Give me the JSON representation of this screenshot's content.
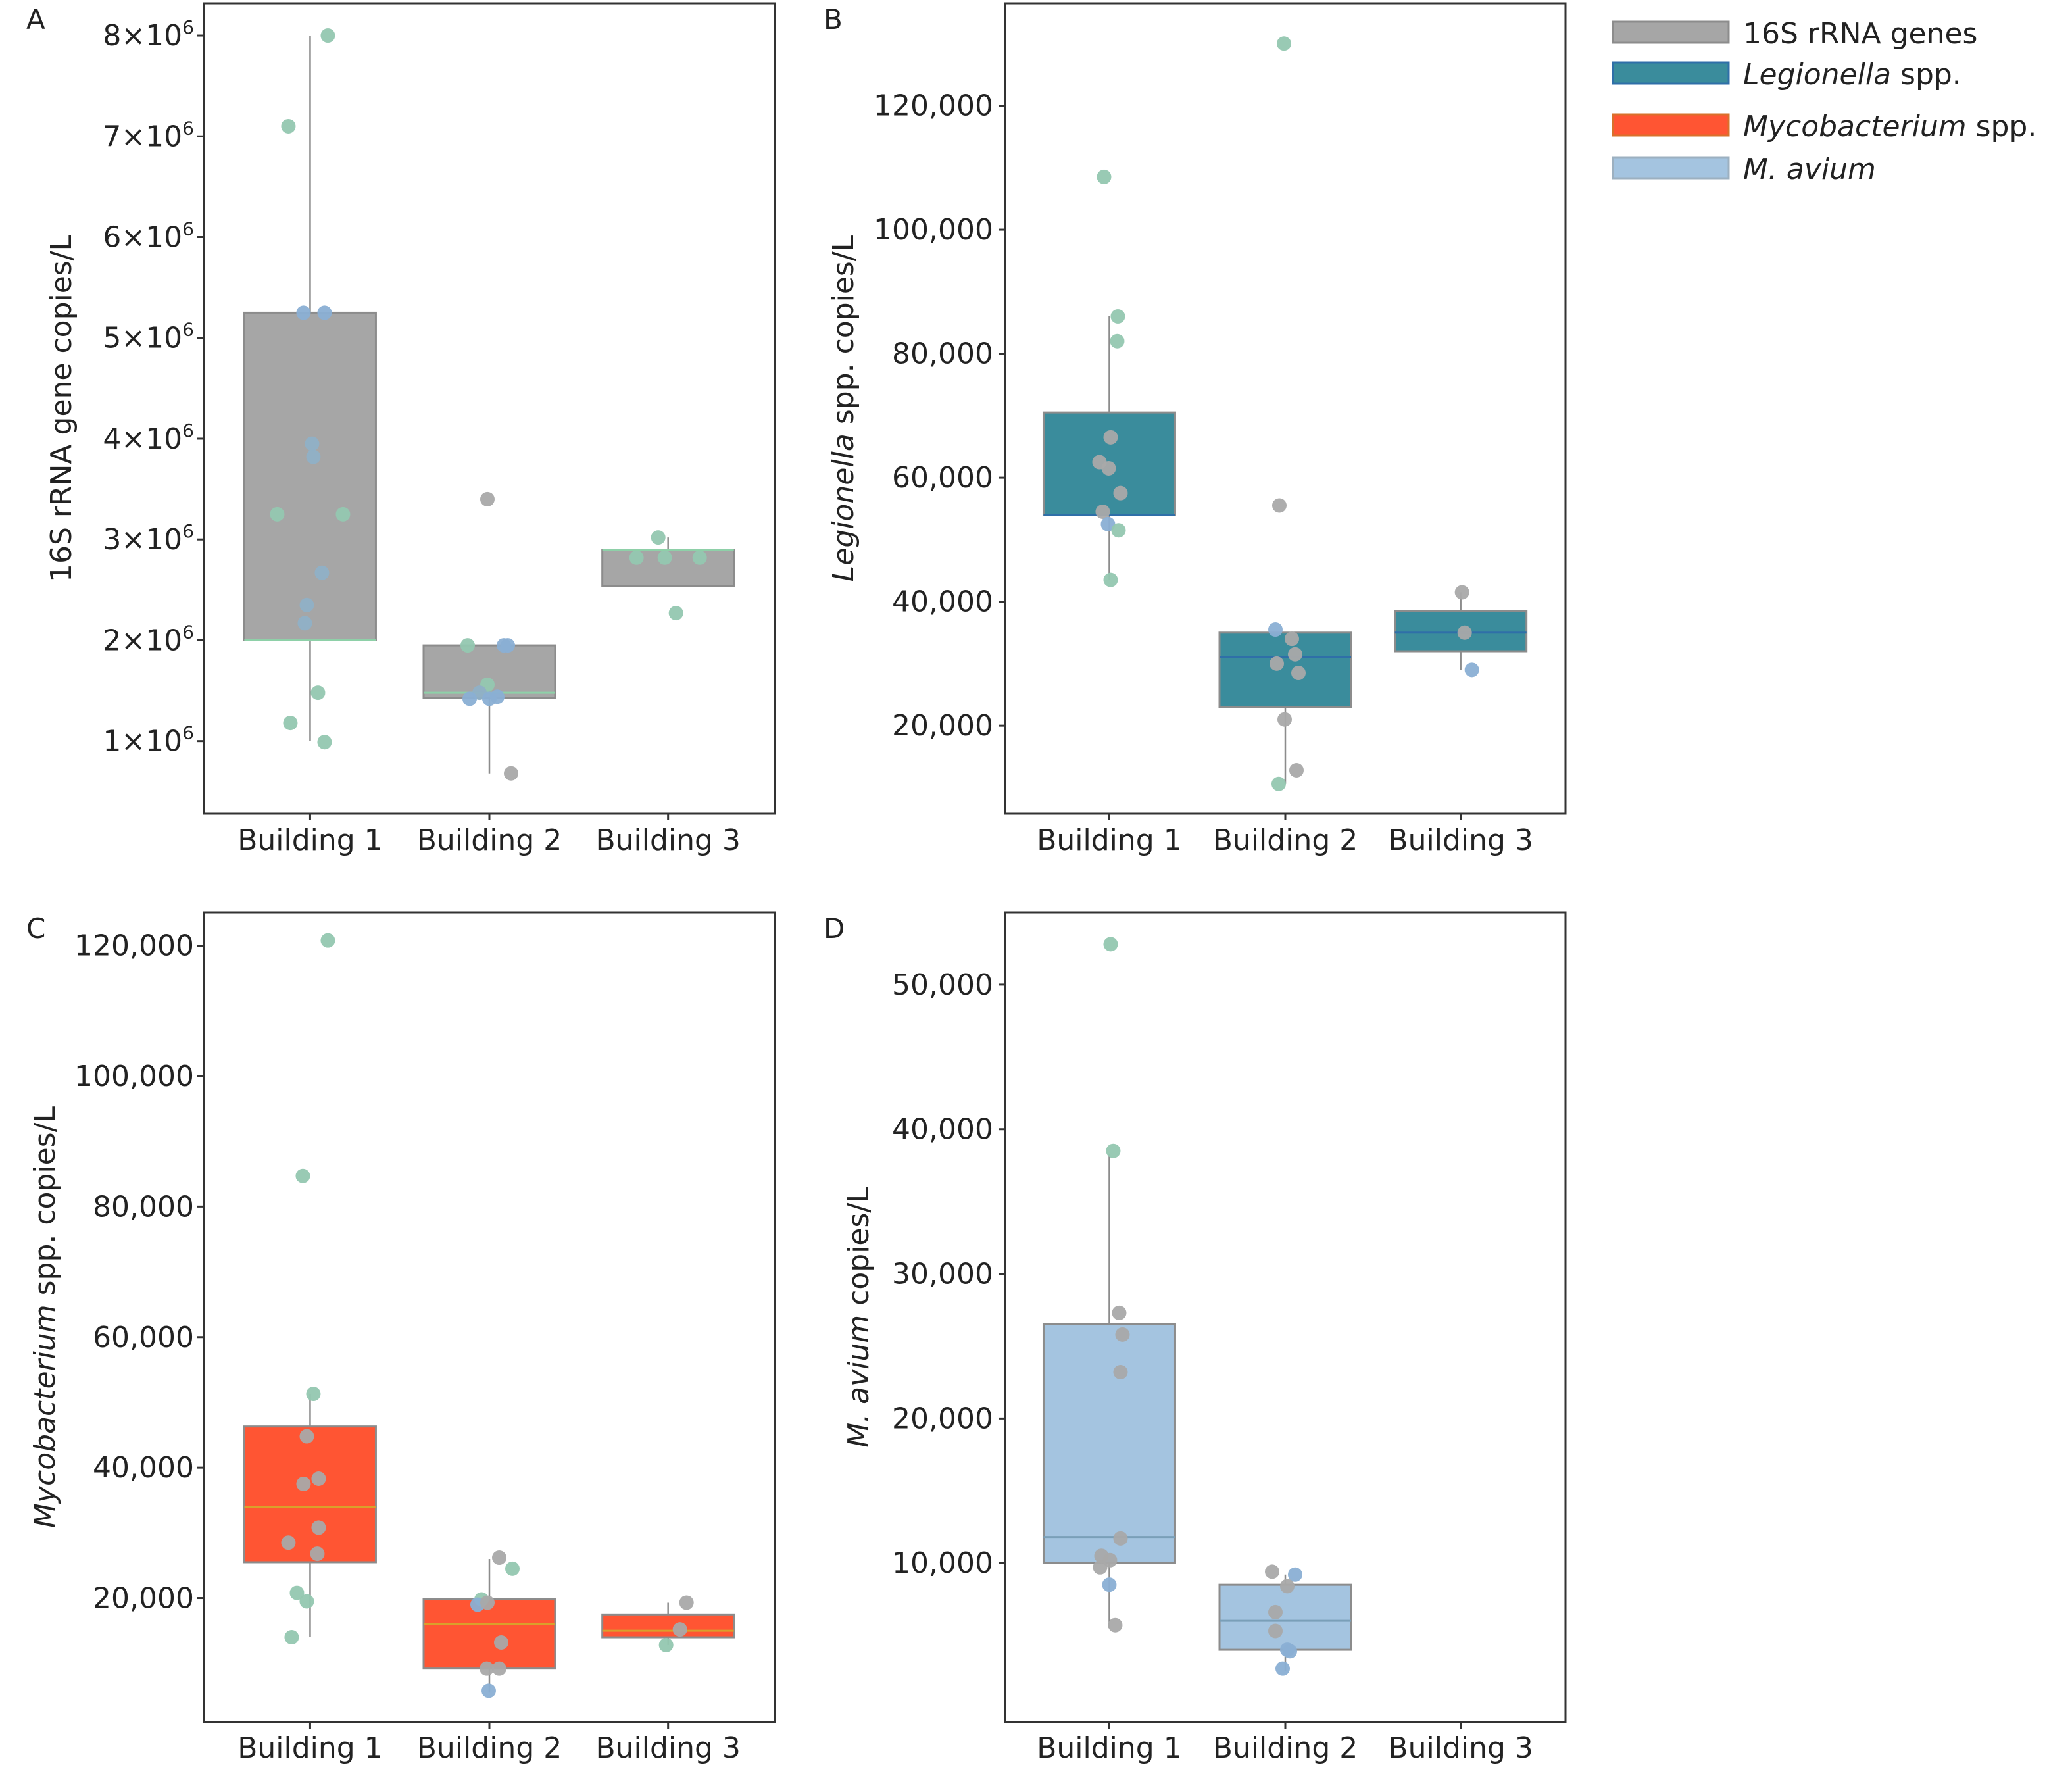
{
  "legend": {
    "items": [
      {
        "label": "16S rRNA genes",
        "italic_part": "",
        "rest": "16S rRNA genes",
        "color": "#a6a6a6",
        "edge": "#8c8c8c"
      },
      {
        "label": "Legionella spp.",
        "italic_part": "Legionella",
        "rest": " spp.",
        "color": "#3a8c9c",
        "edge": "#2f6fa8"
      },
      {
        "label": "Mycobacterium spp.",
        "italic_part": "Mycobacterium",
        "rest": " spp.",
        "color": "#ff5533",
        "edge": "#d9702b"
      },
      {
        "label": "M. avium",
        "italic_part": "M. avium",
        "rest": "",
        "color": "#a4c4e0",
        "edge": "#9cb0c0"
      }
    ]
  },
  "chart_data": [
    {
      "panel": "A",
      "type": "box",
      "ylabel": "16S rRNA gene copies/L",
      "ylabel_italic": "",
      "ylabel_rest": "16S rRNA gene copies/L",
      "categories": [
        "Building 1",
        "Building 2",
        "Building 3"
      ],
      "yticks": [
        1000000,
        2000000,
        3000000,
        4000000,
        5000000,
        6000000,
        7000000,
        8000000
      ],
      "ytick_labels": [
        {
          "mant": "1×10",
          "exp": "6"
        },
        {
          "mant": "2×10",
          "exp": "6"
        },
        {
          "mant": "3×10",
          "exp": "6"
        },
        {
          "mant": "4×10",
          "exp": "6"
        },
        {
          "mant": "5×10",
          "exp": "6"
        },
        {
          "mant": "6×10",
          "exp": "6"
        },
        {
          "mant": "7×10",
          "exp": "6"
        },
        {
          "mant": "8×10",
          "exp": "6"
        }
      ],
      "ylim": [
        280000,
        8320000
      ],
      "box_color": "#a6a6a6",
      "median_color": "#8ed0a8",
      "boxes": [
        {
          "q1": 2000000,
          "median": 2000000,
          "q3": 5250000,
          "whisker_low": 1000000,
          "whisker_high": 8000000
        },
        {
          "q1": 1430000,
          "median": 1480000,
          "q3": 1950000,
          "whisker_low": 680000,
          "whisker_high": 1950000
        },
        {
          "q1": 2540000,
          "median": 2900000,
          "q3": 2900000,
          "whisker_low": 2540000,
          "whisker_high": 3020000
        }
      ],
      "points": [
        [
          [
            -0.33,
            7100000,
            0
          ],
          [
            0.27,
            8000000,
            0
          ],
          [
            -0.1,
            5250000,
            1
          ],
          [
            0.22,
            5250000,
            1
          ],
          [
            0.03,
            3950000,
            2
          ],
          [
            0.05,
            3820000,
            2
          ],
          [
            0.18,
            2670000,
            2
          ],
          [
            -0.05,
            2350000,
            2
          ],
          [
            -0.08,
            2170000,
            2
          ],
          [
            -0.5,
            3250000,
            0
          ],
          [
            0.5,
            3250000,
            0
          ],
          [
            0.12,
            1480000,
            0
          ],
          [
            -0.3,
            1180000,
            0
          ],
          [
            0.22,
            990000,
            0
          ]
        ],
        [
          [
            -0.03,
            3400000,
            3
          ],
          [
            -0.33,
            1950000,
            0
          ],
          [
            0.28,
            1950000,
            1
          ],
          [
            0.22,
            1950000,
            1
          ],
          [
            -0.03,
            1560000,
            0
          ],
          [
            -0.15,
            1480000,
            2
          ],
          [
            -0.3,
            1420000,
            1
          ],
          [
            0.12,
            1440000,
            1
          ],
          [
            0.0,
            1420000,
            1
          ],
          [
            0.33,
            680000,
            3
          ]
        ],
        [
          [
            -0.15,
            3020000,
            0
          ],
          [
            -0.05,
            2820000,
            0
          ],
          [
            0.12,
            2270000,
            0
          ],
          [
            0.48,
            2820000,
            0
          ],
          [
            -0.48,
            2820000,
            0
          ]
        ]
      ]
    },
    {
      "panel": "B",
      "type": "box",
      "ylabel": "Legionella spp. copies/L",
      "ylabel_italic": "Legionella",
      "ylabel_rest": " spp. copies/L",
      "categories": [
        "Building 1",
        "Building 2",
        "Building 3"
      ],
      "yticks": [
        20000,
        40000,
        60000,
        80000,
        100000,
        120000
      ],
      "ytick_labels": [
        {
          "mant": "20,000"
        },
        {
          "mant": "40,000"
        },
        {
          "mant": "60,000"
        },
        {
          "mant": "80,000"
        },
        {
          "mant": "100,000"
        },
        {
          "mant": "120,000"
        }
      ],
      "ylim": [
        5800,
        136500
      ],
      "box_color": "#3a8c9c",
      "median_color": "#2f6fa8",
      "boxes": [
        {
          "q1": 54000,
          "median": 54000,
          "q3": 70500,
          "whisker_low": 43500,
          "whisker_high": 86000
        },
        {
          "q1": 23000,
          "median": 31000,
          "q3": 35000,
          "whisker_low": 10600,
          "whisker_high": 35000
        },
        {
          "q1": 32000,
          "median": 35000,
          "q3": 38500,
          "whisker_low": 29000,
          "whisker_high": 41500
        }
      ],
      "points": [
        [
          [
            -0.08,
            108500,
            0
          ],
          [
            0.13,
            86000,
            0
          ],
          [
            0.12,
            82000,
            0
          ],
          [
            0.02,
            66500,
            3
          ],
          [
            -0.15,
            62500,
            3
          ],
          [
            -0.01,
            61500,
            3
          ],
          [
            0.17,
            57500,
            3
          ],
          [
            -0.1,
            54500,
            3
          ],
          [
            -0.02,
            52500,
            1
          ],
          [
            0.14,
            51500,
            0
          ],
          [
            0.02,
            43500,
            0
          ]
        ],
        [
          [
            -0.02,
            130000,
            0
          ],
          [
            -0.09,
            55500,
            3
          ],
          [
            -0.15,
            35500,
            1
          ],
          [
            0.1,
            34000,
            3
          ],
          [
            -0.13,
            30000,
            3
          ],
          [
            0.15,
            31500,
            3
          ],
          [
            0.2,
            28500,
            3
          ],
          [
            -0.01,
            21000,
            3
          ],
          [
            0.17,
            12800,
            3
          ],
          [
            -0.1,
            10600,
            0
          ]
        ],
        [
          [
            0.02,
            41500,
            3
          ],
          [
            0.06,
            35000,
            3
          ],
          [
            0.17,
            29000,
            1
          ]
        ]
      ]
    },
    {
      "panel": "C",
      "type": "box",
      "ylabel": "Mycobacterium spp. copies/L",
      "ylabel_italic": "Mycobacterium",
      "ylabel_rest": " spp. copies/L",
      "categories": [
        "Building 1",
        "Building 2",
        "Building 3"
      ],
      "yticks": [
        20000,
        40000,
        60000,
        80000,
        100000,
        120000
      ],
      "ytick_labels": [
        {
          "mant": "20,000"
        },
        {
          "mant": "40,000"
        },
        {
          "mant": "60,000"
        },
        {
          "mant": "80,000"
        },
        {
          "mant": "100,000"
        },
        {
          "mant": "120,000"
        }
      ],
      "ylim": [
        1000,
        125100
      ],
      "box_color": "#ff5533",
      "median_color": "#d9a02b",
      "boxes": [
        {
          "q1": 25500,
          "median": 34000,
          "q3": 46300,
          "whisker_low": 14000,
          "whisker_high": 51300
        },
        {
          "q1": 9200,
          "median": 16000,
          "q3": 19800,
          "whisker_low": 5500,
          "whisker_high": 26000
        },
        {
          "q1": 14000,
          "median": 15000,
          "q3": 17500,
          "whisker_low": 12800,
          "whisker_high": 19300
        }
      ],
      "points": [
        [
          [
            0.27,
            120800,
            0
          ],
          [
            -0.11,
            84700,
            0
          ],
          [
            0.05,
            51300,
            0
          ],
          [
            -0.05,
            44800,
            3
          ],
          [
            0.13,
            38300,
            3
          ],
          [
            -0.1,
            37500,
            3
          ],
          [
            0.13,
            30800,
            3
          ],
          [
            -0.33,
            28500,
            3
          ],
          [
            0.11,
            26800,
            3
          ],
          [
            -0.2,
            20800,
            0
          ],
          [
            -0.05,
            19500,
            0
          ],
          [
            -0.28,
            14000,
            0
          ]
        ],
        [
          [
            0.15,
            26200,
            3
          ],
          [
            0.35,
            24500,
            0
          ],
          [
            -0.12,
            19800,
            0
          ],
          [
            -0.18,
            19000,
            1
          ],
          [
            -0.03,
            19300,
            3
          ],
          [
            0.18,
            13200,
            3
          ],
          [
            -0.04,
            9200,
            3
          ],
          [
            0.15,
            9200,
            3
          ],
          [
            -0.01,
            5800,
            1
          ]
        ],
        [
          [
            0.28,
            19300,
            3
          ],
          [
            -0.03,
            12800,
            0
          ],
          [
            0.18,
            15200,
            3
          ]
        ]
      ]
    },
    {
      "panel": "D",
      "type": "box",
      "ylabel": "M. avium copies/L",
      "ylabel_italic": "M. avium",
      "ylabel_rest": " copies/L",
      "categories": [
        "Building 1",
        "Building 2",
        "Building 3"
      ],
      "yticks": [
        10000,
        20000,
        30000,
        40000,
        50000
      ],
      "ytick_labels": [
        {
          "mant": "10,000"
        },
        {
          "mant": "20,000"
        },
        {
          "mant": "30,000"
        },
        {
          "mant": "40,000"
        },
        {
          "mant": "50,000"
        }
      ],
      "ylim": [
        -1000,
        55000
      ],
      "box_color": "#a4c4e0",
      "median_color": "#7a9fb8",
      "boxes": [
        {
          "q1": 10000,
          "median": 11800,
          "q3": 26500,
          "whisker_low": 5500,
          "whisker_high": 38300
        },
        {
          "q1": 4000,
          "median": 6000,
          "q3": 8500,
          "whisker_low": 2500,
          "whisker_high": 9200
        },
        null
      ],
      "points": [
        [
          [
            0.02,
            52800,
            0
          ],
          [
            0.06,
            38500,
            0
          ],
          [
            0.15,
            27300,
            3
          ],
          [
            0.2,
            25800,
            3
          ],
          [
            0.17,
            23200,
            3
          ],
          [
            0.17,
            11700,
            3
          ],
          [
            -0.12,
            10500,
            3
          ],
          [
            0.01,
            10200,
            3
          ],
          [
            -0.14,
            9700,
            3
          ],
          [
            0.0,
            8500,
            1
          ],
          [
            0.09,
            5700,
            3
          ]
        ],
        [
          [
            -0.2,
            9400,
            3
          ],
          [
            0.15,
            9200,
            1
          ],
          [
            0.03,
            8400,
            3
          ],
          [
            -0.15,
            6600,
            3
          ],
          [
            -0.15,
            5300,
            3
          ],
          [
            0.03,
            4000,
            1
          ],
          [
            0.07,
            3900,
            1
          ],
          [
            -0.04,
            2700,
            1
          ]
        ],
        []
      ]
    }
  ]
}
